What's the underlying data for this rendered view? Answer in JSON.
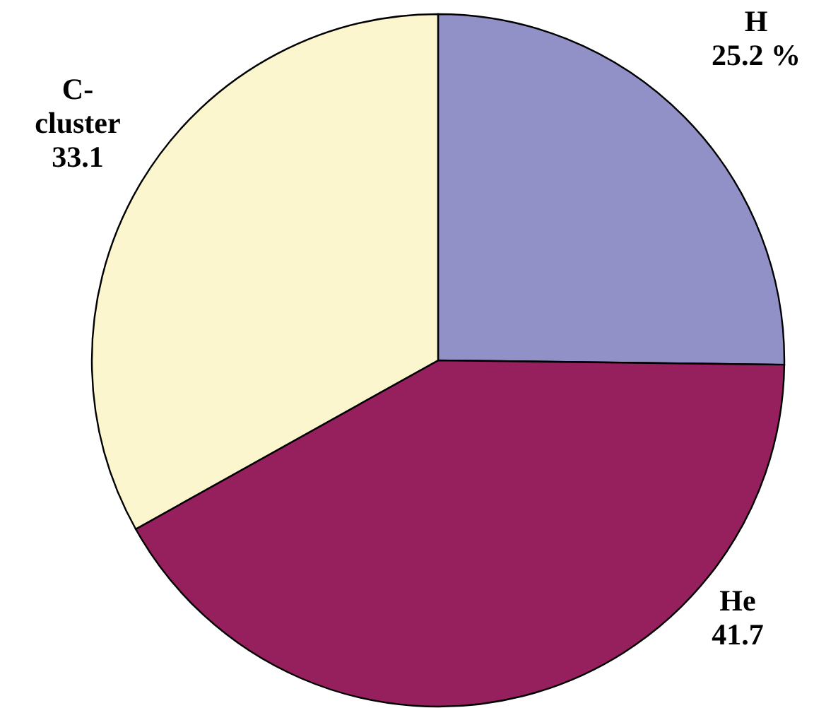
{
  "chart_data": {
    "type": "pie",
    "categories": [
      "H",
      "He",
      "C-cluster"
    ],
    "values": [
      25.2,
      41.7,
      33.1
    ],
    "colors": [
      "#9191c8",
      "#961f5e",
      "#fbf6cd"
    ],
    "value_labels": [
      "25.2 %",
      "41.7",
      "33.1"
    ]
  }
}
